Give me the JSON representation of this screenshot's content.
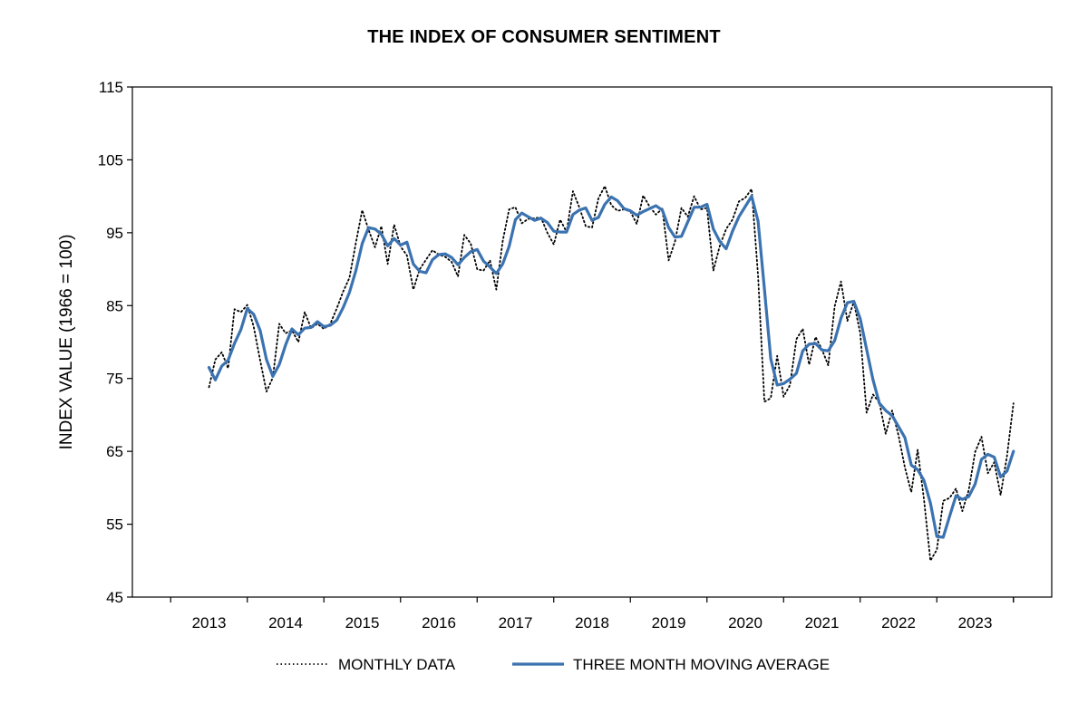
{
  "chart_data": {
    "type": "line",
    "title": "THE INDEX OF CONSUMER SENTIMENT",
    "ylabel": "INDEX VALUE (1966 = 100)",
    "xlabel": "",
    "ylim": [
      45,
      115
    ],
    "yticks": [
      45,
      55,
      65,
      75,
      85,
      95,
      105,
      115
    ],
    "xlim": [
      2012.0,
      2024.0
    ],
    "xticks": [
      2013,
      2014,
      2015,
      2016,
      2017,
      2018,
      2019,
      2020,
      2021,
      2022,
      2023
    ],
    "grid": false,
    "legend_position": "bottom",
    "series": [
      {
        "name": "MONTHLY DATA",
        "style": "dotted",
        "color": "#000000",
        "x": [
          2013.0,
          2013.083,
          2013.167,
          2013.25,
          2013.333,
          2013.417,
          2013.5,
          2013.583,
          2013.667,
          2013.75,
          2013.833,
          2013.917,
          2014.0,
          2014.083,
          2014.167,
          2014.25,
          2014.333,
          2014.417,
          2014.5,
          2014.583,
          2014.667,
          2014.75,
          2014.833,
          2014.917,
          2015.0,
          2015.083,
          2015.167,
          2015.25,
          2015.333,
          2015.417,
          2015.5,
          2015.583,
          2015.667,
          2015.75,
          2015.833,
          2015.917,
          2016.0,
          2016.083,
          2016.167,
          2016.25,
          2016.333,
          2016.417,
          2016.5,
          2016.583,
          2016.667,
          2016.75,
          2016.833,
          2016.917,
          2017.0,
          2017.083,
          2017.167,
          2017.25,
          2017.333,
          2017.417,
          2017.5,
          2017.583,
          2017.667,
          2017.75,
          2017.833,
          2017.917,
          2018.0,
          2018.083,
          2018.167,
          2018.25,
          2018.333,
          2018.417,
          2018.5,
          2018.583,
          2018.667,
          2018.75,
          2018.833,
          2018.917,
          2019.0,
          2019.083,
          2019.167,
          2019.25,
          2019.333,
          2019.417,
          2019.5,
          2019.583,
          2019.667,
          2019.75,
          2019.833,
          2019.917,
          2020.0,
          2020.083,
          2020.167,
          2020.25,
          2020.333,
          2020.417,
          2020.5,
          2020.583,
          2020.667,
          2020.75,
          2020.833,
          2020.917,
          2021.0,
          2021.083,
          2021.167,
          2021.25,
          2021.333,
          2021.417,
          2021.5,
          2021.583,
          2021.667,
          2021.75,
          2021.833,
          2021.917,
          2022.0,
          2022.083,
          2022.167,
          2022.25,
          2022.333,
          2022.417,
          2022.5,
          2022.583,
          2022.667,
          2022.75,
          2022.833,
          2022.917,
          2023.0,
          2023.083,
          2023.167,
          2023.25,
          2023.333,
          2023.417,
          2023.5
        ],
        "y": [
          73.8,
          77.6,
          78.6,
          76.4,
          84.5,
          84.1,
          85.1,
          82.1,
          77.5,
          73.2,
          75.1,
          82.5,
          81.2,
          81.6,
          80.0,
          84.1,
          81.9,
          82.5,
          81.8,
          82.5,
          84.6,
          86.9,
          88.8,
          93.6,
          98.1,
          95.4,
          93.0,
          95.9,
          90.7,
          96.1,
          93.1,
          91.9,
          87.2,
          90.0,
          91.3,
          92.6,
          92.0,
          91.7,
          91.0,
          89.0,
          94.7,
          93.5,
          90.0,
          89.8,
          91.2,
          87.2,
          93.8,
          98.2,
          98.5,
          96.3,
          96.9,
          97.0,
          97.1,
          95.0,
          93.4,
          96.8,
          95.1,
          100.7,
          98.5,
          95.9,
          95.7,
          99.7,
          101.4,
          98.8,
          98.0,
          98.2,
          97.9,
          96.2,
          100.1,
          98.6,
          97.5,
          98.3,
          91.2,
          93.8,
          98.4,
          97.2,
          100.0,
          98.2,
          98.4,
          89.8,
          93.2,
          95.5,
          96.8,
          99.3,
          99.8,
          101.0,
          89.1,
          71.8,
          72.3,
          78.1,
          72.5,
          74.1,
          80.4,
          81.8,
          76.9,
          80.7,
          79.0,
          76.8,
          84.9,
          88.3,
          82.9,
          85.5,
          81.2,
          70.3,
          72.8,
          71.7,
          67.4,
          70.6,
          67.2,
          62.8,
          59.4,
          65.2,
          58.4,
          50.0,
          51.5,
          58.2,
          58.6,
          59.9,
          56.8,
          59.7,
          64.9,
          67.0,
          62.0,
          63.5,
          59.0,
          64.4,
          71.6
        ]
      },
      {
        "name": "THREE MONTH MOVING AVERAGE",
        "style": "solid",
        "color": "#3b72b0",
        "x": [
          2013.0,
          2013.083,
          2013.167,
          2013.25,
          2013.333,
          2013.417,
          2013.5,
          2013.583,
          2013.667,
          2013.75,
          2013.833,
          2013.917,
          2014.0,
          2014.083,
          2014.167,
          2014.25,
          2014.333,
          2014.417,
          2014.5,
          2014.583,
          2014.667,
          2014.75,
          2014.833,
          2014.917,
          2015.0,
          2015.083,
          2015.167,
          2015.25,
          2015.333,
          2015.417,
          2015.5,
          2015.583,
          2015.667,
          2015.75,
          2015.833,
          2015.917,
          2016.0,
          2016.083,
          2016.167,
          2016.25,
          2016.333,
          2016.417,
          2016.5,
          2016.583,
          2016.667,
          2016.75,
          2016.833,
          2016.917,
          2017.0,
          2017.083,
          2017.167,
          2017.25,
          2017.333,
          2017.417,
          2017.5,
          2017.583,
          2017.667,
          2017.75,
          2017.833,
          2017.917,
          2018.0,
          2018.083,
          2018.167,
          2018.25,
          2018.333,
          2018.417,
          2018.5,
          2018.583,
          2018.667,
          2018.75,
          2018.833,
          2018.917,
          2019.0,
          2019.083,
          2019.167,
          2019.25,
          2019.333,
          2019.417,
          2019.5,
          2019.583,
          2019.667,
          2019.75,
          2019.833,
          2019.917,
          2020.0,
          2020.083,
          2020.167,
          2020.25,
          2020.333,
          2020.417,
          2020.5,
          2020.583,
          2020.667,
          2020.75,
          2020.833,
          2020.917,
          2021.0,
          2021.083,
          2021.167,
          2021.25,
          2021.333,
          2021.417,
          2021.5,
          2021.583,
          2021.667,
          2021.75,
          2021.833,
          2021.917,
          2022.0,
          2022.083,
          2022.167,
          2022.25,
          2022.333,
          2022.417,
          2022.5,
          2022.583,
          2022.667,
          2022.75,
          2022.833,
          2022.917,
          2023.0,
          2023.083,
          2023.167,
          2023.25,
          2023.333,
          2023.417,
          2023.5
        ],
        "y": [
          76.5,
          74.8,
          76.7,
          77.5,
          79.8,
          81.7,
          84.6,
          83.8,
          81.6,
          77.6,
          75.3,
          76.9,
          79.6,
          81.8,
          81.0,
          81.9,
          82.0,
          82.8,
          82.1,
          82.3,
          83.0,
          84.7,
          86.8,
          89.8,
          93.5,
          95.7,
          95.5,
          94.8,
          93.2,
          94.2,
          93.3,
          93.7,
          90.7,
          89.7,
          89.5,
          91.3,
          92.0,
          92.1,
          91.6,
          90.6,
          91.6,
          92.4,
          92.7,
          91.1,
          90.3,
          89.4,
          90.7,
          93.1,
          96.8,
          97.7,
          97.2,
          96.7,
          97.0,
          96.4,
          95.2,
          95.1,
          95.1,
          97.5,
          98.1,
          98.4,
          96.7,
          97.1,
          98.9,
          99.9,
          99.4,
          98.3,
          98.0,
          97.4,
          97.9,
          98.3,
          98.7,
          98.1,
          95.7,
          94.4,
          94.5,
          96.5,
          98.5,
          98.5,
          98.9,
          95.5,
          93.8,
          92.8,
          95.2,
          97.2,
          98.6,
          100.0,
          96.6,
          87.3,
          77.7,
          74.1,
          74.3,
          74.9,
          75.7,
          78.8,
          79.7,
          79.8,
          78.9,
          78.8,
          80.2,
          83.3,
          85.4,
          85.6,
          83.2,
          79.0,
          74.8,
          71.6,
          70.6,
          69.9,
          68.4,
          66.9,
          63.1,
          62.5,
          61.0,
          57.9,
          53.3,
          53.2,
          56.1,
          58.9,
          58.4,
          58.8,
          60.5,
          63.9,
          64.6,
          64.2,
          61.5,
          62.3,
          65.0
        ]
      }
    ]
  }
}
